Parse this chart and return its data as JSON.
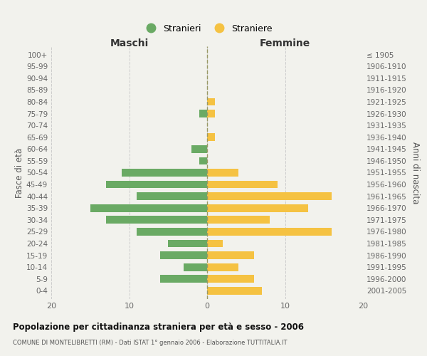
{
  "age_groups": [
    "0-4",
    "5-9",
    "10-14",
    "15-19",
    "20-24",
    "25-29",
    "30-34",
    "35-39",
    "40-44",
    "45-49",
    "50-54",
    "55-59",
    "60-64",
    "65-69",
    "70-74",
    "75-79",
    "80-84",
    "85-89",
    "90-94",
    "95-99",
    "100+"
  ],
  "birth_years": [
    "2001-2005",
    "1996-2000",
    "1991-1995",
    "1986-1990",
    "1981-1985",
    "1976-1980",
    "1971-1975",
    "1966-1970",
    "1961-1965",
    "1956-1960",
    "1951-1955",
    "1946-1950",
    "1941-1945",
    "1936-1940",
    "1931-1935",
    "1926-1930",
    "1921-1925",
    "1916-1920",
    "1911-1915",
    "1906-1910",
    "≤ 1905"
  ],
  "maschi": [
    0,
    6,
    3,
    6,
    5,
    9,
    13,
    15,
    9,
    13,
    11,
    1,
    2,
    0,
    0,
    1,
    0,
    0,
    0,
    0,
    0
  ],
  "femmine": [
    7,
    6,
    4,
    6,
    2,
    16,
    8,
    13,
    16,
    9,
    4,
    0,
    0,
    1,
    0,
    1,
    1,
    0,
    0,
    0,
    0
  ],
  "maschi_color": "#6aaa64",
  "femmine_color": "#f5c242",
  "background_color": "#f2f2ed",
  "title": "Popolazione per cittadinanza straniera per età e sesso - 2006",
  "subtitle": "COMUNE DI MONTELIBRETTI (RM) - Dati ISTAT 1° gennaio 2006 - Elaborazione TUTTITALIA.IT",
  "xlabel_left": "Maschi",
  "xlabel_right": "Femmine",
  "ylabel_left": "Fasce di età",
  "ylabel_right": "Anni di nascita",
  "legend_maschi": "Stranieri",
  "legend_femmine": "Straniere",
  "xlim": 20,
  "grid_color": "#cccccc"
}
